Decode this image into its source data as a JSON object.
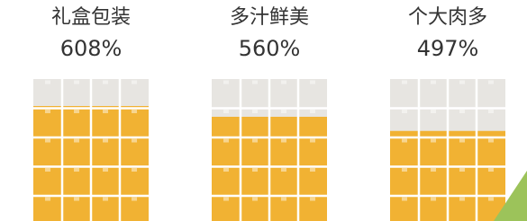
{
  "chart_data": {
    "type": "bar",
    "categories": [
      "礼盒包装",
      "多汁鲜美",
      "个大肉多"
    ],
    "values": [
      608,
      560,
      497
    ],
    "value_labels": [
      "608%",
      "560%",
      "497%"
    ],
    "color": "#f1b233"
  }
}
